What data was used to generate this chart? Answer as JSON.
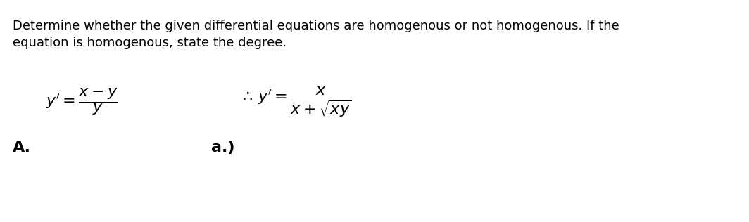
{
  "background_color": "#ffffff",
  "title_line1": "Determine whether the given differential equations are homogenous or not homogenous. If the",
  "title_line2": "equation is homogenous, state the degree.",
  "title_fontsize": 13.0,
  "title_color": "#000000",
  "eq1_label": "A.",
  "eq2_label": "a.)",
  "math_fontsize": 16,
  "label_fontsize": 14,
  "fig_width": 10.64,
  "fig_height": 3.16,
  "dpi": 100
}
